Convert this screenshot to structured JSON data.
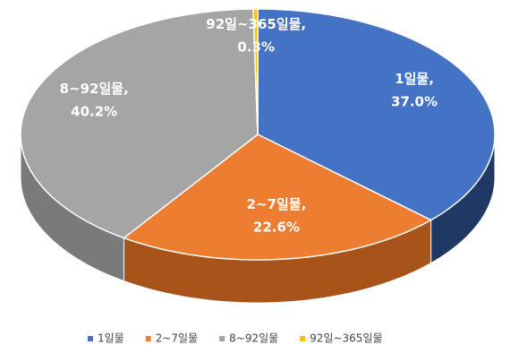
{
  "chart_data": {
    "type": "pie3d",
    "categories": [
      "1일물",
      "2~7일물",
      "8~92일물",
      "92일~365일물"
    ],
    "values": [
      37.0,
      22.6,
      40.2,
      0.3
    ],
    "value_labels": [
      "37.0%",
      "22.6%",
      "40.2%",
      "0.3%"
    ],
    "label_separator": ",",
    "colors": [
      "#4472c4",
      "#ed7d31",
      "#a5a5a5",
      "#ffc000"
    ],
    "side_colors": [
      "#203864",
      "#a8531a",
      "#7a7a7a",
      "#b38600"
    ],
    "legend": "bottom"
  }
}
